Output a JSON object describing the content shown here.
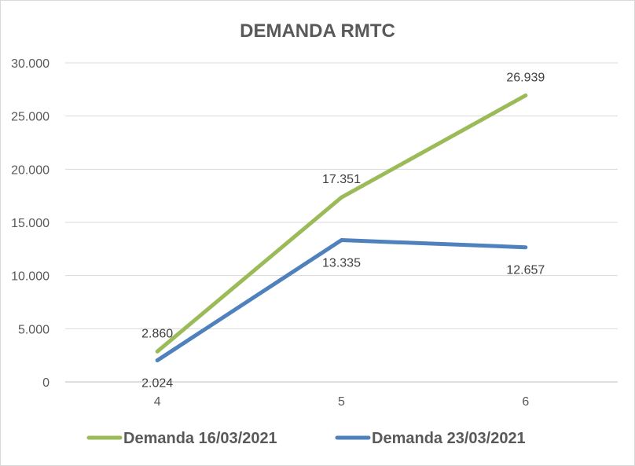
{
  "chart_data": {
    "type": "line",
    "title": "DEMANDA RMTC",
    "categories": [
      "4",
      "5",
      "6"
    ],
    "y_ticks": [
      "0",
      "5.000",
      "10.000",
      "15.000",
      "20.000",
      "25.000",
      "30.000"
    ],
    "ylim": [
      0,
      30000
    ],
    "grid": true,
    "legend_position": "bottom",
    "series": [
      {
        "name": "Demanda 16/03/2021",
        "color": "#9bbb59",
        "values": [
          2860,
          17351,
          26939
        ],
        "labels": [
          "2.860",
          "17.351",
          "26.939"
        ]
      },
      {
        "name": "Demanda 23/03/2021",
        "color": "#4f81bd",
        "values": [
          2024,
          13335,
          12657
        ],
        "labels": [
          "2.024",
          "13.335",
          "12.657"
        ]
      }
    ]
  }
}
